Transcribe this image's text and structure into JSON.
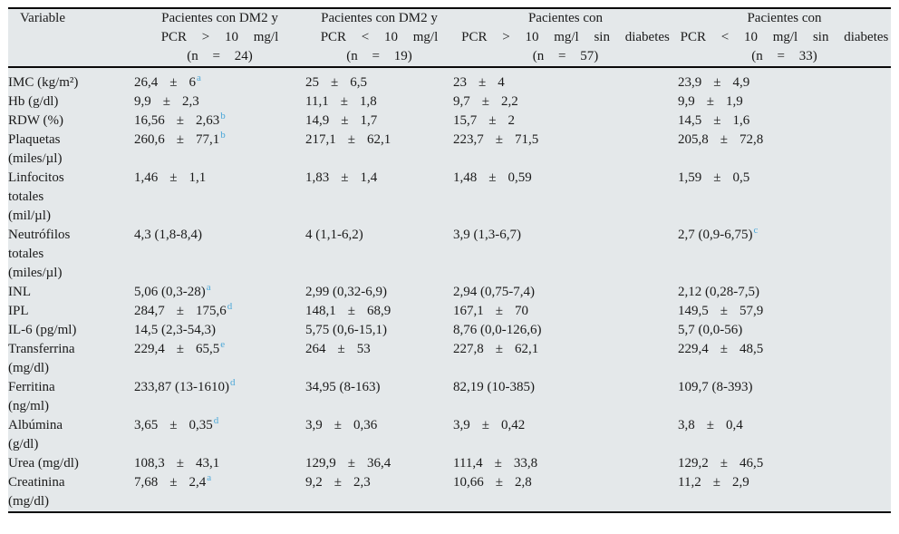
{
  "table": {
    "pm_sign": "±",
    "columns": [
      {
        "lines": [
          "Variable"
        ]
      },
      {
        "lines": [
          "Pacientes con DM2 y",
          "PCR > 10 mg/l",
          "(n = 24)"
        ]
      },
      {
        "lines": [
          "Pacientes con DM2 y",
          "PCR < 10 mg/l",
          "(n = 19)"
        ]
      },
      {
        "lines": [
          "Pacientes con",
          "PCR > 10 mg/l sin diabetes",
          "(n = 57)"
        ]
      },
      {
        "lines": [
          "Pacientes con",
          "PCR < 10 mg/l sin diabetes",
          "(n = 33)"
        ]
      }
    ],
    "rows": [
      {
        "label_lines": [
          "IMC (kg/m²)"
        ],
        "cells": [
          {
            "m": "26,4",
            "s": "6",
            "sup": "a"
          },
          {
            "m": "25",
            "s": "6,5",
            "sup": null
          },
          {
            "m": "23",
            "s": "4",
            "sup": null
          },
          {
            "m": "23,9",
            "s": "4,9",
            "sup": null
          }
        ]
      },
      {
        "label_lines": [
          "Hb (g/dl)"
        ],
        "cells": [
          {
            "m": "9,9",
            "s": "2,3",
            "sup": null
          },
          {
            "m": "11,1",
            "s": "1,8",
            "sup": null
          },
          {
            "m": "9,7",
            "s": "2,2",
            "sup": null
          },
          {
            "m": "9,9",
            "s": "1,9",
            "sup": null
          }
        ]
      },
      {
        "label_lines": [
          "RDW (%)"
        ],
        "cells": [
          {
            "m": "16,56",
            "s": "2,63",
            "sup": "b"
          },
          {
            "m": "14,9",
            "s": "1,7",
            "sup": null
          },
          {
            "m": "15,7",
            "s": "2",
            "sup": null
          },
          {
            "m": "14,5",
            "s": "1,6",
            "sup": null
          }
        ]
      },
      {
        "label_lines": [
          "Plaquetas",
          "(miles/µl)"
        ],
        "cells": [
          {
            "m": "260,6",
            "s": "77,1",
            "sup": "b"
          },
          {
            "m": "217,1",
            "s": "62,1",
            "sup": null
          },
          {
            "m": "223,7",
            "s": "71,5",
            "sup": null
          },
          {
            "m": "205,8",
            "s": "72,8",
            "sup": null
          }
        ]
      },
      {
        "label_lines": [
          "Linfocitos",
          "totales",
          "(mil/µl)"
        ],
        "cells": [
          {
            "m": "1,46",
            "s": "1,1",
            "sup": null
          },
          {
            "m": "1,83",
            "s": "1,4",
            "sup": null
          },
          {
            "m": "1,48",
            "s": "0,59",
            "sup": null
          },
          {
            "m": "1,59",
            "s": "0,5",
            "sup": null
          }
        ]
      },
      {
        "label_lines": [
          "Neutrófilos",
          "totales",
          "(miles/µl)"
        ],
        "cells": [
          {
            "t": "4,3 (1,8-8,4)",
            "sup": null
          },
          {
            "t": "4 (1,1-6,2)",
            "sup": null
          },
          {
            "t": "3,9 (1,3-6,7)",
            "sup": null
          },
          {
            "t": "2,7 (0,9-6,75)",
            "sup": "c"
          }
        ]
      },
      {
        "label_lines": [
          "INL"
        ],
        "cells": [
          {
            "t": "5,06 (0,3-28)",
            "sup": "a"
          },
          {
            "t": "2,99 (0,32-6,9)",
            "sup": null
          },
          {
            "t": "2,94 (0,75-7,4)",
            "sup": null
          },
          {
            "t": "2,12 (0,28-7,5)",
            "sup": null
          }
        ]
      },
      {
        "label_lines": [
          "IPL"
        ],
        "cells": [
          {
            "m": "284,7",
            "s": "175,6",
            "sup": "d"
          },
          {
            "m": "148,1",
            "s": "68,9",
            "sup": null
          },
          {
            "m": "167,1",
            "s": "70",
            "sup": null
          },
          {
            "m": "149,5",
            "s": "57,9",
            "sup": null
          }
        ]
      },
      {
        "label_lines": [
          "IL-6 (pg/ml)"
        ],
        "cells": [
          {
            "t": "14,5 (2,3-54,3)",
            "sup": null
          },
          {
            "t": "5,75 (0,6-15,1)",
            "sup": null
          },
          {
            "t": "8,76 (0,0-126,6)",
            "sup": null
          },
          {
            "t": "5,7 (0,0-56)",
            "sup": null
          }
        ]
      },
      {
        "label_lines": [
          "Transferrina",
          "(mg/dl)"
        ],
        "cells": [
          {
            "m": "229,4",
            "s": "65,5",
            "sup": "e"
          },
          {
            "m": "264",
            "s": "53",
            "sup": null
          },
          {
            "m": "227,8",
            "s": "62,1",
            "sup": null
          },
          {
            "m": "229,4",
            "s": "48,5",
            "sup": null
          }
        ]
      },
      {
        "label_lines": [
          "Ferritina",
          "(ng/ml)"
        ],
        "cells": [
          {
            "t": "233,87 (13-1610)",
            "sup": "d"
          },
          {
            "t": "34,95 (8-163)",
            "sup": null
          },
          {
            "t": "82,19 (10-385)",
            "sup": null
          },
          {
            "t": "109,7 (8-393)",
            "sup": null
          }
        ]
      },
      {
        "label_lines": [
          "Albúmina",
          "(g/dl)"
        ],
        "cells": [
          {
            "m": "3,65",
            "s": "0,35",
            "sup": "d"
          },
          {
            "m": "3,9",
            "s": "0,36",
            "sup": null
          },
          {
            "m": "3,9",
            "s": "0,42",
            "sup": null
          },
          {
            "m": "3,8",
            "s": "0,4",
            "sup": null
          }
        ]
      },
      {
        "label_lines": [
          "Urea (mg/dl)"
        ],
        "cells": [
          {
            "m": "108,3",
            "s": "43,1",
            "sup": null
          },
          {
            "m": "129,9",
            "s": "36,4",
            "sup": null
          },
          {
            "m": "111,4",
            "s": "33,8",
            "sup": null
          },
          {
            "m": "129,2",
            "s": "46,5",
            "sup": null
          }
        ]
      },
      {
        "label_lines": [
          "Creatinina",
          "(mg/dl)"
        ],
        "cells": [
          {
            "m": "7,68",
            "s": "2,4",
            "sup": "a"
          },
          {
            "m": "9,2",
            "s": "2,3",
            "sup": null
          },
          {
            "m": "10,66",
            "s": "2,8",
            "sup": null
          },
          {
            "m": "11,2",
            "s": "2,9",
            "sup": null
          }
        ]
      }
    ]
  },
  "colors": {
    "table_background": "#e4e8ea",
    "text": "#1a1a1a",
    "superscript_blue": "#4ba7d8",
    "rule_black": "#0a0a0a"
  }
}
